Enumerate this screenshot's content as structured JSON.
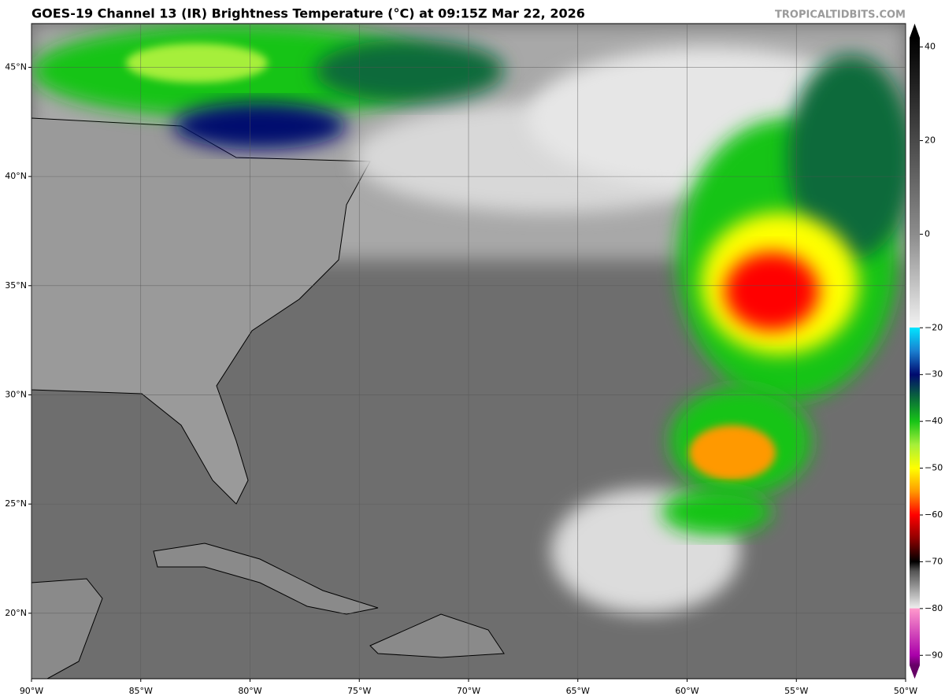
{
  "map": {
    "title": "GOES-19 Channel 13 (IR) Brightness Temperature (°C) at 09:15Z Mar 22, 2026",
    "credit": "TROPICALTIDBITS.COM",
    "xlim": [
      -90,
      -50
    ],
    "ylim": [
      17,
      47
    ],
    "xticks": [
      {
        "value": -90,
        "label": "90°W"
      },
      {
        "value": -85,
        "label": "85°W"
      },
      {
        "value": -80,
        "label": "80°W"
      },
      {
        "value": -75,
        "label": "75°W"
      },
      {
        "value": -70,
        "label": "70°W"
      },
      {
        "value": -65,
        "label": "65°W"
      },
      {
        "value": -60,
        "label": "60°W"
      },
      {
        "value": -55,
        "label": "55°W"
      },
      {
        "value": -50,
        "label": "50°W"
      }
    ],
    "yticks": [
      {
        "value": 20,
        "label": "20°N"
      },
      {
        "value": 25,
        "label": "25°N"
      },
      {
        "value": 30,
        "label": "30°N"
      },
      {
        "value": 35,
        "label": "35°N"
      },
      {
        "value": 40,
        "label": "40°N"
      },
      {
        "value": 45,
        "label": "45°N"
      }
    ],
    "grid": true
  },
  "colorbar": {
    "lim": [
      -95,
      45
    ],
    "ticks": [
      40,
      20,
      0,
      {
        "value": -20,
        "label": "−20"
      },
      {
        "value": -30,
        "label": "−30"
      },
      {
        "value": -40,
        "label": "−40"
      },
      {
        "value": -50,
        "label": "−50"
      },
      {
        "value": -60,
        "label": "−60"
      },
      {
        "value": -70,
        "label": "−70"
      },
      {
        "value": -80,
        "label": "−80"
      },
      {
        "value": -90,
        "label": "−90"
      }
    ],
    "stops": [
      [
        45,
        "#000000"
      ],
      [
        0,
        "#8c8c8c"
      ],
      [
        -19.9,
        "#f2f2f2"
      ],
      [
        -20,
        "#00e5ff"
      ],
      [
        -25,
        "#1a7fd0"
      ],
      [
        -30,
        "#000a6e"
      ],
      [
        -35,
        "#0a6a3a"
      ],
      [
        -40,
        "#17c417"
      ],
      [
        -45,
        "#a6ef3a"
      ],
      [
        -50,
        "#ffff00"
      ],
      [
        -55,
        "#ff9900"
      ],
      [
        -60,
        "#ff0000"
      ],
      [
        -65,
        "#900000"
      ],
      [
        -70,
        "#000000"
      ],
      [
        -72,
        "#555555"
      ],
      [
        -79.9,
        "#eeeeee"
      ],
      [
        -80,
        "#ff99cc"
      ],
      [
        -90,
        "#aa00aa"
      ],
      [
        -95,
        "#660066"
      ]
    ]
  }
}
